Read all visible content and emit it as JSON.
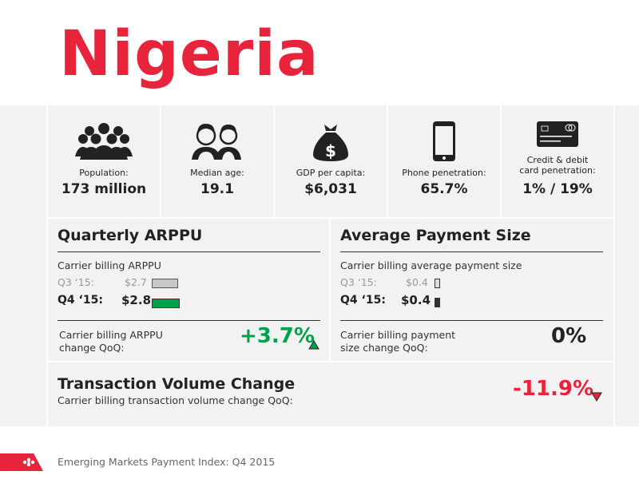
{
  "page": {
    "title": "Nigeria",
    "footer": "Emerging Markets Payment Index: Q4 2015"
  },
  "colors": {
    "accent_red": "#e8243c",
    "positive_green": "#00a14b",
    "panel_grey": "#f2f2f2"
  },
  "stats": [
    {
      "icon": "crowd-icon",
      "label": "Population:",
      "value": "173 million"
    },
    {
      "icon": "couple-icon",
      "label": "Median age:",
      "value": "19.1"
    },
    {
      "icon": "money-bag-icon",
      "label": "GDP per capita:",
      "value": "$6,031"
    },
    {
      "icon": "smartphone-icon",
      "label": "Phone penetration:",
      "value": "65.7%"
    },
    {
      "icon": "credit-card-icon",
      "label_line1": "Credit & debit",
      "label_line2": "card penetration:",
      "value": "1% / 19%"
    }
  ],
  "arppu": {
    "title": "Quarterly ARPPU",
    "subtitle": "Carrier billing ARPPU",
    "q3_label": "Q3 ‘15:",
    "q3_value": "$2.7",
    "q4_label": "Q4 ‘15:",
    "q4_value": "$2.8",
    "change_label_line1": "Carrier billing ARPPU",
    "change_label_line2": "change QoQ:",
    "change_value": "+3.7%"
  },
  "payment_size": {
    "title": "Average Payment Size",
    "subtitle": "Carrier billing average payment size",
    "q3_label": "Q3 ‘15:",
    "q3_value": "$0.4",
    "q4_label": "Q4 ‘15:",
    "q4_value": "$0.4",
    "change_label_line1": "Carrier billing payment",
    "change_label_line2": "size change QoQ:",
    "change_value": "0%"
  },
  "volume": {
    "title": "Transaction Volume Change",
    "subtitle": "Carrier billing transaction volume change QoQ:",
    "change_value": "-11.9%"
  }
}
